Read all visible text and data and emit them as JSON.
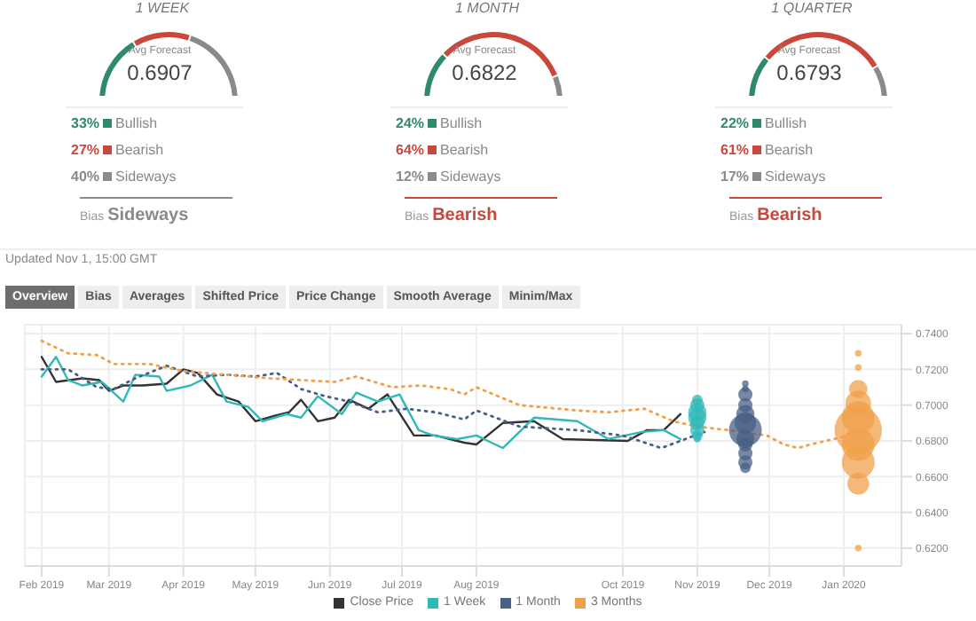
{
  "chart_data": [
    {
      "type": "donut",
      "title": "1 WEEK",
      "categories": [
        "Bullish",
        "Bearish",
        "Sideways"
      ],
      "values": [
        33,
        27,
        40
      ],
      "colors": [
        "#2e8a6a",
        "#c9483c",
        "#8a8a8a"
      ],
      "value_labels": [
        "33%",
        "27%",
        "40%"
      ],
      "legend": "bottom",
      "annotations": [
        "Avg Forecast",
        "0.6907",
        "Bias",
        "Sideways"
      ]
    },
    {
      "type": "donut",
      "title": "1 MONTH",
      "categories": [
        "Bullish",
        "Bearish",
        "Sideways"
      ],
      "values": [
        24,
        64,
        12
      ],
      "colors": [
        "#2e8a6a",
        "#c9483c",
        "#8a8a8a"
      ],
      "value_labels": [
        "24%",
        "64%",
        "12%"
      ],
      "legend": "bottom",
      "annotations": [
        "Avg Forecast",
        "0.6822",
        "Bias",
        "Bearish"
      ]
    },
    {
      "type": "donut",
      "title": "1 QUARTER",
      "categories": [
        "Bullish",
        "Bearish",
        "Sideways"
      ],
      "values": [
        22,
        61,
        17
      ],
      "colors": [
        "#2e8a6a",
        "#c9483c",
        "#8a8a8a"
      ],
      "value_labels": [
        "22%",
        "61%",
        "17%"
      ],
      "legend": "bottom",
      "annotations": [
        "Avg Forecast",
        "0.6793",
        "Bias",
        "Bearish"
      ]
    },
    {
      "type": "line",
      "annotations": [
        "Updated Nov 1, 15:00 GMT",
        "Overview",
        "Bias",
        "Averages",
        "Shifted Price",
        "Price Change",
        "Smooth Average",
        "Minim/Max"
      ],
      "xlim": [
        "2019-01-25",
        "2020-01-25"
      ],
      "xticks": [
        {
          "value": "2019-02-01",
          "label": "Feb 2019"
        },
        {
          "value": "2019-03-01",
          "label": "Mar 2019"
        },
        {
          "value": "2019-04-01",
          "label": "Apr 2019"
        },
        {
          "value": "2019-05-01",
          "label": "May 2019"
        },
        {
          "value": "2019-06-01",
          "label": "Jun 2019"
        },
        {
          "value": "2019-07-01",
          "label": "Jul 2019"
        },
        {
          "value": "2019-08-01",
          "label": "Aug 2019"
        },
        {
          "value": "2019-10-01",
          "label": "Oct 2019"
        },
        {
          "value": "2019-11-01",
          "label": "Nov 2019"
        },
        {
          "value": "2019-12-01",
          "label": "Dec 2019"
        },
        {
          "value": "2020-01-01",
          "label": "Jan 2020"
        }
      ],
      "ylim": [
        0.61,
        0.745
      ],
      "yticks": [
        {
          "value": 0.62,
          "label": "0.6200"
        },
        {
          "value": 0.64,
          "label": "0.6400"
        },
        {
          "value": 0.66,
          "label": "0.6600"
        },
        {
          "value": 0.68,
          "label": "0.6800"
        },
        {
          "value": 0.7,
          "label": "0.7000"
        },
        {
          "value": 0.72,
          "label": "0.7200"
        },
        {
          "value": 0.74,
          "label": "0.7400"
        }
      ],
      "grid": true,
      "legend": "bottom",
      "series": [
        {
          "name": "Close Price",
          "color": "#333333",
          "line_style": "solid",
          "x": [
            "2019-02-01",
            "2019-02-07",
            "2019-02-18",
            "2019-02-25",
            "2019-03-01",
            "2019-03-07",
            "2019-03-15",
            "2019-03-25",
            "2019-04-01",
            "2019-04-07",
            "2019-04-15",
            "2019-04-24",
            "2019-05-01",
            "2019-05-09",
            "2019-05-15",
            "2019-05-20",
            "2019-05-27",
            "2019-06-03",
            "2019-06-09",
            "2019-06-17",
            "2019-06-25",
            "2019-07-06",
            "2019-07-15",
            "2019-07-27",
            "2019-08-01",
            "2019-08-12",
            "2019-08-25",
            "2019-09-06",
            "2019-10-03",
            "2019-10-11",
            "2019-10-18",
            "2019-10-25"
          ],
          "values": [
            0.727,
            0.713,
            0.715,
            0.714,
            0.708,
            0.711,
            0.711,
            0.712,
            0.72,
            0.718,
            0.706,
            0.702,
            0.691,
            0.694,
            0.696,
            0.703,
            0.691,
            0.693,
            0.703,
            0.698,
            0.706,
            0.683,
            0.683,
            0.679,
            0.678,
            0.69,
            0.691,
            0.681,
            0.68,
            0.686,
            0.686,
            0.695
          ]
        },
        {
          "name": "1 Week",
          "color": "#31b8b8",
          "line_style": "solid",
          "x": [
            "2019-02-01",
            "2019-02-07",
            "2019-02-12",
            "2019-02-18",
            "2019-02-26",
            "2019-03-07",
            "2019-03-12",
            "2019-03-22",
            "2019-03-25",
            "2019-04-04",
            "2019-04-13",
            "2019-04-19",
            "2019-04-28",
            "2019-05-04",
            "2019-05-14",
            "2019-05-20",
            "2019-05-27",
            "2019-06-06",
            "2019-06-12",
            "2019-06-21",
            "2019-06-30",
            "2019-07-08",
            "2019-07-14",
            "2019-07-24",
            "2019-08-01",
            "2019-08-12",
            "2019-08-25",
            "2019-09-12",
            "2019-09-25",
            "2019-10-09",
            "2019-10-18",
            "2019-10-25"
          ],
          "values": [
            0.716,
            0.727,
            0.714,
            0.711,
            0.713,
            0.702,
            0.717,
            0.716,
            0.708,
            0.711,
            0.717,
            0.702,
            0.699,
            0.691,
            0.695,
            0.693,
            0.705,
            0.695,
            0.707,
            0.702,
            0.706,
            0.686,
            0.683,
            0.681,
            0.683,
            0.676,
            0.693,
            0.691,
            0.681,
            0.685,
            0.686,
            0.681
          ]
        },
        {
          "name": "1 Month",
          "color": "#4a5f86",
          "line_style": "dotted",
          "x": [
            "2019-02-01",
            "2019-02-12",
            "2019-02-24",
            "2019-03-03",
            "2019-03-12",
            "2019-03-25",
            "2019-04-07",
            "2019-04-19",
            "2019-05-01",
            "2019-05-10",
            "2019-05-20",
            "2019-05-30",
            "2019-06-09",
            "2019-06-21",
            "2019-07-03",
            "2019-07-15",
            "2019-07-27",
            "2019-08-01",
            "2019-08-19",
            "2019-09-12",
            "2019-10-01",
            "2019-10-17",
            "2019-10-25",
            "2019-11-04"
          ],
          "values": [
            0.72,
            0.72,
            0.71,
            0.709,
            0.715,
            0.722,
            0.716,
            0.717,
            0.716,
            0.718,
            0.709,
            0.705,
            0.702,
            0.696,
            0.698,
            0.696,
            0.692,
            0.697,
            0.688,
            0.686,
            0.683,
            0.676,
            0.68,
            0.685
          ]
        },
        {
          "name": "3 Months",
          "color": "#f0a04b",
          "line_style": "dotted",
          "x": [
            "2019-02-01",
            "2019-02-12",
            "2019-02-24",
            "2019-03-03",
            "2019-03-18",
            "2019-04-01",
            "2019-04-19",
            "2019-05-07",
            "2019-05-20",
            "2019-06-03",
            "2019-06-12",
            "2019-06-27",
            "2019-07-09",
            "2019-07-21",
            "2019-07-27",
            "2019-08-01",
            "2019-08-19",
            "2019-09-12",
            "2019-09-25",
            "2019-10-10",
            "2019-10-22",
            "2019-11-01",
            "2019-11-14",
            "2019-11-30",
            "2019-12-07",
            "2019-12-13",
            "2019-12-18",
            "2019-12-31",
            "2020-01-03"
          ],
          "values": [
            0.736,
            0.729,
            0.728,
            0.723,
            0.723,
            0.719,
            0.717,
            0.715,
            0.714,
            0.713,
            0.716,
            0.71,
            0.711,
            0.709,
            0.706,
            0.71,
            0.7,
            0.697,
            0.696,
            0.698,
            0.691,
            0.688,
            0.686,
            0.683,
            0.678,
            0.676,
            0.678,
            0.682,
            0.684
          ]
        },
        {
          "type": "bubble",
          "color": "#31b8b8",
          "x": [
            "2019-11-01",
            "2019-11-01",
            "2019-11-01",
            "2019-11-01",
            "2019-11-01",
            "2019-11-01",
            "2019-11-01",
            "2019-11-01"
          ],
          "values": [
            0.703,
            0.7,
            0.696,
            0.693,
            0.69,
            0.686,
            0.683,
            0.681
          ],
          "sizes": [
            0.05,
            0.09,
            0.15,
            0.15,
            0.09,
            0.09,
            0.05,
            0.02
          ]
        },
        {
          "type": "bubble",
          "color": "#4a5f86",
          "x": [
            "2019-11-21",
            "2019-11-21",
            "2019-11-21",
            "2019-11-21",
            "2019-11-21",
            "2019-11-21",
            "2019-11-21",
            "2019-11-21",
            "2019-11-21",
            "2019-11-21",
            "2019-11-21",
            "2019-11-21"
          ],
          "values": [
            0.712,
            0.709,
            0.706,
            0.7,
            0.695,
            0.69,
            0.686,
            0.681,
            0.678,
            0.673,
            0.668,
            0.665
          ],
          "sizes": [
            0.02,
            0.02,
            0.09,
            0.09,
            0.15,
            0.21,
            0.48,
            0.15,
            0.09,
            0.09,
            0.09,
            0.05
          ]
        },
        {
          "type": "bubble",
          "color": "#f0a04b",
          "x": [
            "2020-01-07",
            "2020-01-07",
            "2020-01-07",
            "2020-01-07",
            "2020-01-07",
            "2020-01-07",
            "2020-01-07",
            "2020-01-07",
            "2020-01-07",
            "2020-01-07"
          ],
          "values": [
            0.729,
            0.721,
            0.709,
            0.701,
            0.693,
            0.686,
            0.678,
            0.668,
            0.656,
            0.62
          ],
          "sizes": [
            0.02,
            0.02,
            0.15,
            0.29,
            0.48,
            1,
            0.48,
            0.48,
            0.21,
            0.02
          ]
        }
      ]
    }
  ]
}
